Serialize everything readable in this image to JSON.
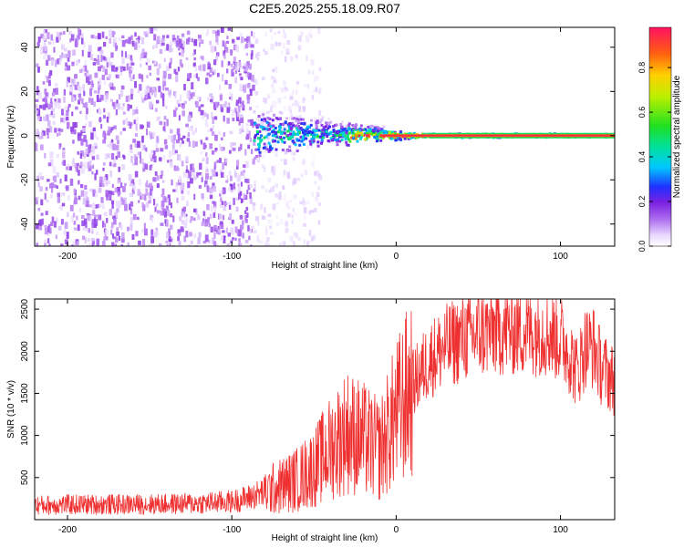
{
  "title": "C2E5.2025.255.18.09.R07",
  "chart_data": [
    {
      "type": "heatmap",
      "xlabel": "Height of straight line (km)",
      "ylabel": "Frequency (Hz)",
      "xlim": [
        -220,
        133
      ],
      "ylim": [
        -50,
        49
      ],
      "xticks": [
        -200,
        -100,
        0,
        100
      ],
      "yticks": [
        -40,
        -20,
        0,
        20,
        40
      ],
      "colorbar": {
        "label": "Normalized spectral amplitude",
        "range": [
          0,
          0.98
        ],
        "ticks": [
          0.0,
          0.2,
          0.4,
          0.6,
          0.8
        ],
        "tick_labels": [
          "0.0",
          "0.2",
          "0.4",
          "0.6",
          "0.8"
        ]
      },
      "features": [
        {
          "name": "noise floor",
          "x_range": [
            -220,
            -87
          ],
          "amplitude": 0.1
        },
        {
          "name": "diffuse noise",
          "x_range": [
            -87,
            -47
          ],
          "amplitude": 0.04
        },
        {
          "name": "carrier signal",
          "x_range": [
            -87,
            133
          ],
          "frequency_hz": 0,
          "amplitude_peak": 0.9
        }
      ]
    },
    {
      "type": "line",
      "xlabel": "Height of straight line (km)",
      "ylabel": "SNR (10 * v/v)",
      "xlim": [
        -220,
        133
      ],
      "ylim": [
        0,
        2620
      ],
      "xticks": [
        -200,
        -100,
        0,
        100
      ],
      "yticks": [
        500,
        1000,
        1500,
        2000,
        2500
      ],
      "series": [
        {
          "name": "SNR",
          "color": "#ee3030",
          "x": [
            -220,
            -200,
            -180,
            -160,
            -140,
            -120,
            -100,
            -90,
            -80,
            -70,
            -60,
            -50,
            -40,
            -30,
            -20,
            -10,
            0,
            10,
            20,
            30,
            40,
            50,
            60,
            70,
            80,
            90,
            100,
            105,
            110,
            115,
            120,
            125,
            133
          ],
          "y": [
            170,
            180,
            180,
            180,
            185,
            195,
            215,
            260,
            330,
            400,
            480,
            620,
            850,
            1050,
            950,
            820,
            1250,
            1600,
            1900,
            2050,
            2150,
            2200,
            2250,
            2250,
            2250,
            2250,
            2150,
            2000,
            1750,
            2050,
            2050,
            1800,
            1650
          ]
        }
      ]
    }
  ]
}
